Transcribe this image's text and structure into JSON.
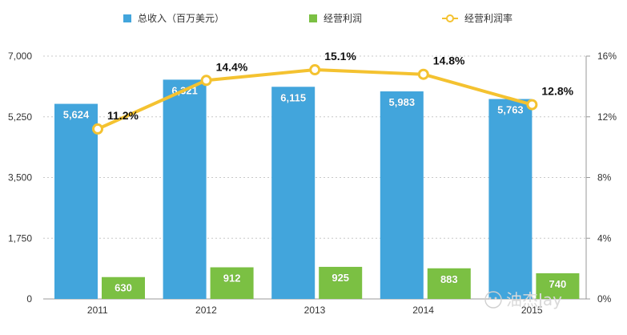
{
  "chart_data": {
    "type": "bar",
    "categories": [
      "2011",
      "2012",
      "2013",
      "2014",
      "2015"
    ],
    "series": [
      {
        "name": "总收入（百万美元）",
        "type": "bar",
        "axis": "left",
        "color": "#42A5DC",
        "values": [
          5624,
          6321,
          6115,
          5983,
          5763
        ],
        "labels": [
          "5,624",
          "6,321",
          "6,115",
          "5,983",
          "5,763"
        ]
      },
      {
        "name": "经营利润",
        "type": "bar",
        "axis": "left",
        "color": "#7BC043",
        "values": [
          630,
          912,
          925,
          883,
          740
        ],
        "labels": [
          "630",
          "912",
          "925",
          "883",
          "740"
        ]
      },
      {
        "name": "经营利润率",
        "type": "line",
        "axis": "right",
        "color": "#F4C230",
        "values": [
          11.2,
          14.4,
          15.1,
          14.8,
          12.8
        ],
        "labels": [
          "11.2%",
          "14.4%",
          "15.1%",
          "14.8%",
          "12.8%"
        ]
      }
    ],
    "left_axis": {
      "range": [
        0,
        7000
      ],
      "ticks": [
        0,
        1750,
        3500,
        5250,
        7000
      ],
      "tick_labels": [
        "0",
        "1,750",
        "3,500",
        "5,250",
        "7,000"
      ]
    },
    "right_axis": {
      "range": [
        0,
        16
      ],
      "ticks": [
        0,
        4,
        8,
        12,
        16
      ],
      "tick_labels": [
        "0%",
        "4%",
        "8%",
        "12%",
        "16%"
      ]
    },
    "grid": true,
    "legend_position": "top",
    "watermark": "油杰Jay"
  }
}
